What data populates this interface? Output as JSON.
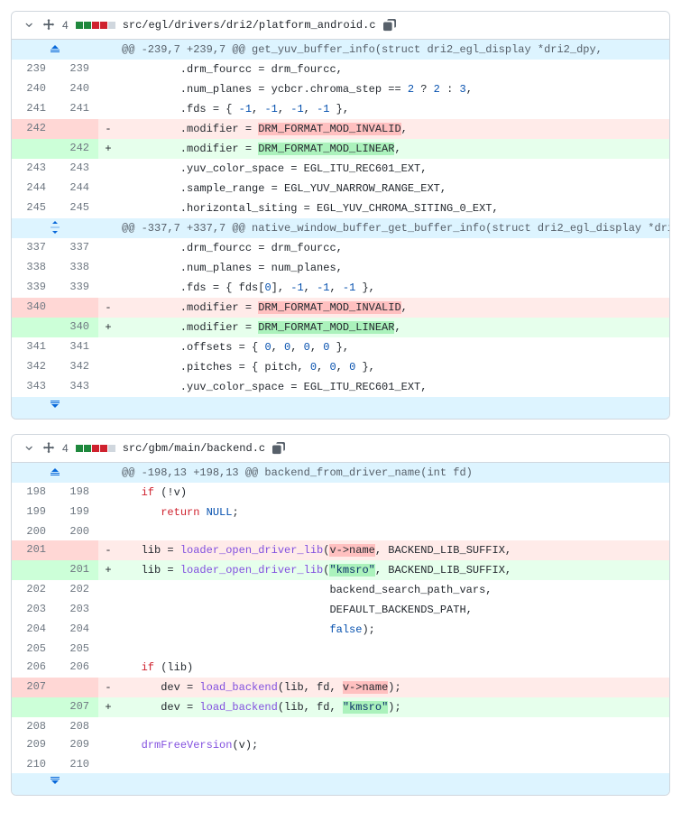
{
  "files": [
    {
      "path": "src/egl/drivers/dri2/platform_android.c",
      "changes": "4",
      "stat_blocks": [
        "#1f883d",
        "#1f883d",
        "#cf222e",
        "#cf222e",
        "#d0d7de"
      ]
    },
    {
      "path": "src/gbm/main/backend.c",
      "changes": "4",
      "stat_blocks": [
        "#1f883d",
        "#1f883d",
        "#cf222e",
        "#cf222e",
        "#d0d7de"
      ]
    }
  ],
  "hunks": {
    "f0h0": "@@ -239,7 +239,7 @@ get_yuv_buffer_info(struct dri2_egl_display *dri2_dpy,",
    "f0h1": "@@ -337,7 +337,7 @@ native_window_buffer_get_buffer_info(struct dri2_egl_display *dri2_dpy,",
    "f1h0": "@@ -198,13 +198,13 @@ backend_from_driver_name(int fd)"
  },
  "ln": {
    "a239": "239",
    "b239": "239",
    "a240": "240",
    "b240": "240",
    "a241": "241",
    "b241": "241",
    "a242": "242",
    "b242": "242",
    "a243": "243",
    "b243": "243",
    "a244": "244",
    "b244": "244",
    "a245": "245",
    "b245": "245",
    "a337": "337",
    "b337": "337",
    "a338": "338",
    "b338": "338",
    "a339": "339",
    "b339": "339",
    "a340": "340",
    "b340": "340",
    "a341": "341",
    "b341": "341",
    "a342": "342",
    "b342": "342",
    "a343": "343",
    "b343": "343",
    "a198": "198",
    "b198": "198",
    "a199": "199",
    "b199": "199",
    "a200": "200",
    "b200": "200",
    "a201": "201",
    "b201": "201",
    "a202": "202",
    "b202": "202",
    "a203": "203",
    "b203": "203",
    "a204": "204",
    "b204": "204",
    "a205": "205",
    "b205": "205",
    "a206": "206",
    "b206": "206",
    "a207": "207",
    "b207": "207",
    "a208": "208",
    "b208": "208",
    "a209": "209",
    "b209": "209",
    "a210": "210",
    "b210": "210"
  },
  "sign": {
    "plus": "+",
    "minus": "-"
  },
  "code": {
    "f0_l239_a": "         .drm_fourcc = drm_fourcc,",
    "f0_l240_a": "         .num_planes = ycbcr.chroma_step == ",
    "f0_l240_b": "2",
    "f0_l240_c": " ? ",
    "f0_l240_d": "2",
    "f0_l240_e": " : ",
    "f0_l240_f": "3",
    "f0_l240_g": ",",
    "f0_l241_a": "         .fds = { ",
    "f0_l241_b": "-1",
    "f0_l241_c": ", ",
    "f0_l241_d": "-1",
    "f0_l241_e": ", ",
    "f0_l241_f": "-1",
    "f0_l241_g": ", ",
    "f0_l241_h": "-1",
    "f0_l241_i": " },",
    "f0_l242d_a": "         .modifier = ",
    "f0_l242d_b": "DRM_FORMAT_MOD_INVALID",
    "f0_l242d_c": ",",
    "f0_l242a_a": "         .modifier = ",
    "f0_l242a_b": "DRM_FORMAT_MOD_LINEAR",
    "f0_l242a_c": ",",
    "f0_l243_a": "         .yuv_color_space = EGL_ITU_REC601_EXT,",
    "f0_l244_a": "         .sample_range = EGL_YUV_NARROW_RANGE_EXT,",
    "f0_l245_a": "         .horizontal_siting = EGL_YUV_CHROMA_SITING_0_EXT,",
    "f0_l337_a": "         .drm_fourcc = drm_fourcc,",
    "f0_l338_a": "         .num_planes = num_planes,",
    "f0_l339_a": "         .fds = { fds[",
    "f0_l339_b": "0",
    "f0_l339_c": "], ",
    "f0_l339_d": "-1",
    "f0_l339_e": ", ",
    "f0_l339_f": "-1",
    "f0_l339_g": ", ",
    "f0_l339_h": "-1",
    "f0_l339_i": " },",
    "f0_l340d_a": "         .modifier = ",
    "f0_l340d_b": "DRM_FORMAT_MOD_INVALID",
    "f0_l340d_c": ",",
    "f0_l340a_a": "         .modifier = ",
    "f0_l340a_b": "DRM_FORMAT_MOD_LINEAR",
    "f0_l340a_c": ",",
    "f0_l341_a": "         .offsets = { ",
    "f0_l341_b": "0",
    "f0_l341_c": ", ",
    "f0_l341_d": "0",
    "f0_l341_e": ", ",
    "f0_l341_f": "0",
    "f0_l341_g": ", ",
    "f0_l341_h": "0",
    "f0_l341_i": " },",
    "f0_l342_a": "         .pitches = { pitch, ",
    "f0_l342_b": "0",
    "f0_l342_c": ", ",
    "f0_l342_d": "0",
    "f0_l342_e": ", ",
    "f0_l342_f": "0",
    "f0_l342_g": " },",
    "f0_l343_a": "         .yuv_color_space = EGL_ITU_REC601_EXT,",
    "f1_l198_a": "   ",
    "f1_l198_b": "if",
    "f1_l198_c": " (!v)",
    "f1_l199_a": "      ",
    "f1_l199_b": "return",
    "f1_l199_c": " ",
    "f1_l199_d": "NULL",
    "f1_l199_e": ";",
    "f1_l200_a": "",
    "f1_l201d_a": "   lib = ",
    "f1_l201d_b": "loader_open_driver_lib",
    "f1_l201d_c": "(",
    "f1_l201d_d": "v->name",
    "f1_l201d_e": ", BACKEND_LIB_SUFFIX,",
    "f1_l201a_a": "   lib = ",
    "f1_l201a_b": "loader_open_driver_lib",
    "f1_l201a_c": "(",
    "f1_l201a_d": "\"kmsro\"",
    "f1_l201a_e": ", BACKEND_LIB_SUFFIX,",
    "f1_l202_a": "                                backend_search_path_vars,",
    "f1_l203_a": "                                DEFAULT_BACKENDS_PATH,",
    "f1_l204_a": "                                ",
    "f1_l204_b": "false",
    "f1_l204_c": ");",
    "f1_l205_a": "",
    "f1_l206_a": "   ",
    "f1_l206_b": "if",
    "f1_l206_c": " (lib)",
    "f1_l207d_a": "      dev = ",
    "f1_l207d_b": "load_backend",
    "f1_l207d_c": "(lib, fd, ",
    "f1_l207d_d": "v->name",
    "f1_l207d_e": ");",
    "f1_l207a_a": "      dev = ",
    "f1_l207a_b": "load_backend",
    "f1_l207a_c": "(lib, fd, ",
    "f1_l207a_d": "\"kmsro\"",
    "f1_l207a_e": ");",
    "f1_l208_a": "",
    "f1_l209_a": "   ",
    "f1_l209_b": "drmFreeVersion",
    "f1_l209_c": "(v);",
    "f1_l210_a": ""
  }
}
